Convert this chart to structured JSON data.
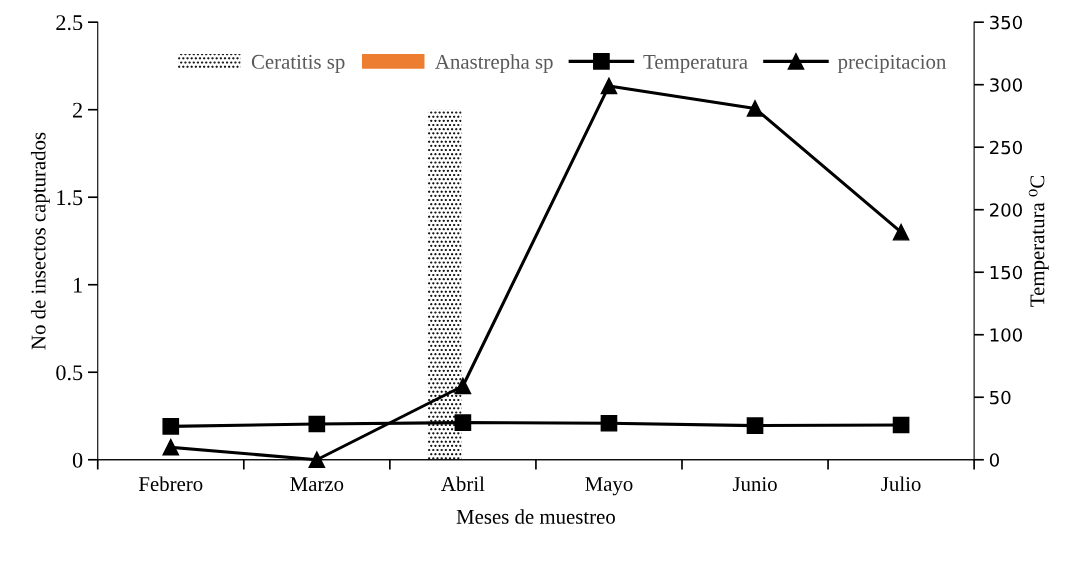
{
  "chart_data": {
    "type": "bar",
    "categories": [
      "Febrero",
      "Marzo",
      "Abril",
      "Mayo",
      "Junio",
      "Julio"
    ],
    "xlabel": "Meses de muestreo",
    "ylabel": "No de insectos capturados",
    "y2label": "Temperatura ⁰C",
    "ylim": [
      0,
      2.5
    ],
    "yticks": [
      0,
      0.5,
      1,
      1.5,
      2,
      2.5
    ],
    "y2lim": [
      0,
      350
    ],
    "y2ticks": [
      0,
      50,
      100,
      150,
      200,
      250,
      300,
      350
    ],
    "series": [
      {
        "name": "Ceratitis sp",
        "color": "#000000",
        "values": [
          0,
          0,
          2,
          0,
          0,
          0
        ]
      },
      {
        "name": "Anastrepha sp",
        "color": "#ed7d31",
        "values": [
          0,
          0,
          0,
          0,
          0,
          0
        ]
      },
      {
        "name": "Temperatura",
        "type": "line",
        "axis": "y2",
        "marker": "square",
        "color": "#000000",
        "values": [
          26.7,
          28.6,
          29.7,
          29.2,
          27.3,
          27.8
        ]
      },
      {
        "name": "precipitacion",
        "type": "line",
        "axis": "y2",
        "marker": "triangle",
        "color": "#000000",
        "values": [
          10,
          0,
          59,
          299,
          281,
          182
        ]
      }
    ],
    "legend": "top",
    "grid": false
  }
}
